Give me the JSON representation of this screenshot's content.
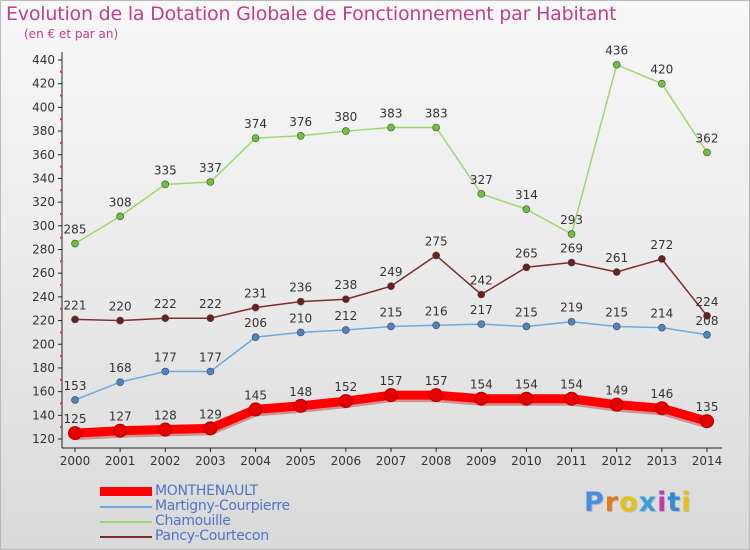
{
  "chart_data": {
    "type": "line",
    "title": "Evolution de la Dotation Globale de Fonctionnement par Habitant",
    "subtitle": "(en € et par an)",
    "xlabel": "",
    "ylabel": "",
    "categories": [
      "2000",
      "2001",
      "2002",
      "2003",
      "2004",
      "2005",
      "2006",
      "2007",
      "2008",
      "2009",
      "2010",
      "2011",
      "2012",
      "2013",
      "2014"
    ],
    "y_ticks": [
      120,
      140,
      160,
      180,
      200,
      220,
      240,
      260,
      280,
      300,
      320,
      340,
      360,
      380,
      400,
      420,
      440
    ],
    "ylim": [
      120,
      440
    ],
    "grid": false,
    "legend_position": "bottom-left",
    "series": [
      {
        "name": "Chamouille",
        "color": "#9dd86d",
        "marker_color": "#6cc23a",
        "style": "thin",
        "values": [
          285,
          308,
          335,
          337,
          374,
          376,
          380,
          383,
          383,
          327,
          314,
          293,
          436,
          420,
          362
        ]
      },
      {
        "name": "Pancy-Courtecon",
        "color": "#7a2e2e",
        "marker_color": "#6b1f1f",
        "style": "thin",
        "values": [
          221,
          220,
          222,
          222,
          231,
          236,
          238,
          249,
          275,
          242,
          265,
          269,
          261,
          272,
          224
        ]
      },
      {
        "name": "Martigny-Courpierre",
        "color": "#6fa8dc",
        "marker_color": "#4a86c4",
        "style": "thin",
        "values": [
          153,
          168,
          177,
          177,
          206,
          210,
          212,
          215,
          216,
          217,
          215,
          219,
          215,
          214,
          208
        ]
      },
      {
        "name": "MONTHENAULT",
        "color": "#ff0000",
        "marker_color": "#e60000",
        "style": "thick",
        "values": [
          125,
          127,
          128,
          129,
          145,
          148,
          152,
          157,
          157,
          154,
          154,
          154,
          149,
          146,
          135
        ]
      }
    ],
    "legend_order": [
      "MONTHENAULT",
      "Martigny-Courpierre",
      "Chamouille",
      "Pancy-Courtecon"
    ]
  },
  "brand": {
    "logo_text": "Proxiti",
    "letter_colors": [
      "#4a8ee0",
      "#e07a1a",
      "#e0c21a",
      "#3aa0d8",
      "#c23ab0",
      "#2f8ad8",
      "#e0c21a"
    ]
  }
}
